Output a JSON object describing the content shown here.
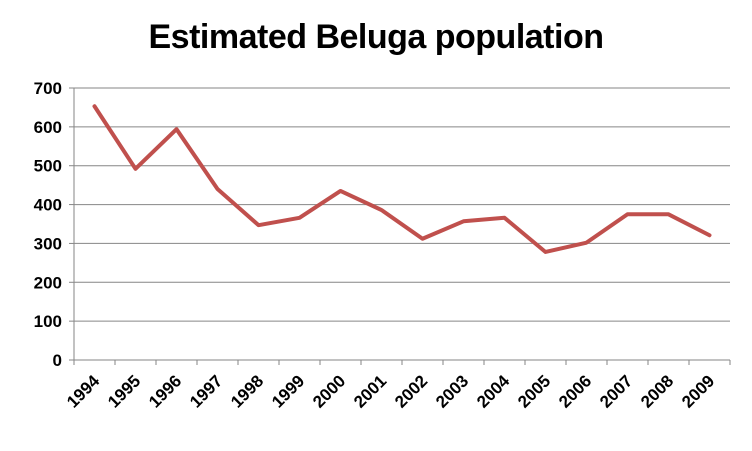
{
  "chart_data": {
    "type": "line",
    "title": "Estimated Beluga population",
    "xlabel": "",
    "ylabel": "",
    "ylim": [
      0,
      700
    ],
    "yticks": [
      "0",
      "100",
      "200",
      "300",
      "400",
      "500",
      "600",
      "700"
    ],
    "categories": [
      "1994",
      "1995",
      "1996",
      "1997",
      "1998",
      "1999",
      "2000",
      "2001",
      "2002",
      "2003",
      "2004",
      "2005",
      "2006",
      "2007",
      "2008",
      "2009"
    ],
    "series": [
      {
        "values": [
          653,
          492,
          594,
          440,
          347,
          366,
          435,
          386,
          312,
          357,
          366,
          278,
          302,
          375,
          375,
          321
        ]
      }
    ],
    "grid": true,
    "legend": "none",
    "colors": {
      "line": "#C0504D",
      "grid": "#868686",
      "axis": "#868686"
    }
  }
}
